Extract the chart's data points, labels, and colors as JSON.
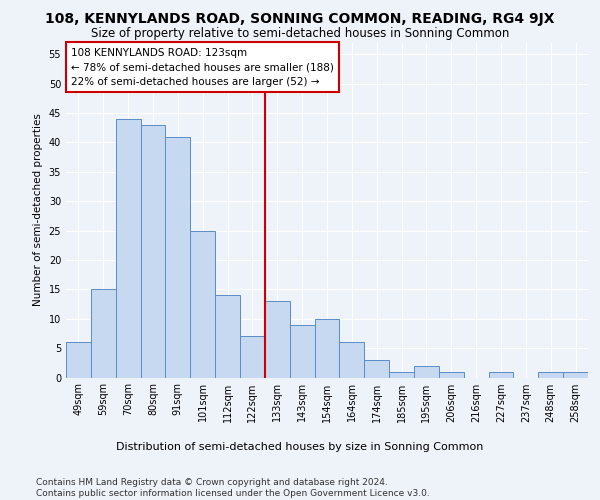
{
  "title": "108, KENNYLANDS ROAD, SONNING COMMON, READING, RG4 9JX",
  "subtitle": "Size of property relative to semi-detached houses in Sonning Common",
  "xlabel": "Distribution of semi-detached houses by size in Sonning Common",
  "ylabel": "Number of semi-detached properties",
  "categories": [
    "49sqm",
    "59sqm",
    "70sqm",
    "80sqm",
    "91sqm",
    "101sqm",
    "112sqm",
    "122sqm",
    "133sqm",
    "143sqm",
    "154sqm",
    "164sqm",
    "174sqm",
    "185sqm",
    "195sqm",
    "206sqm",
    "216sqm",
    "227sqm",
    "237sqm",
    "248sqm",
    "258sqm"
  ],
  "values": [
    6,
    15,
    44,
    43,
    41,
    25,
    14,
    7,
    13,
    9,
    10,
    6,
    3,
    1,
    2,
    1,
    0,
    1,
    0,
    1,
    1
  ],
  "bar_color": "#c6d9f0",
  "bar_edge_color": "#5b8cc8",
  "vline_x": 7.5,
  "vline_color": "#cc0000",
  "annotation_line1": "108 KENNYLANDS ROAD: 123sqm",
  "annotation_line2": "← 78% of semi-detached houses are smaller (188)",
  "annotation_line3": "22% of semi-detached houses are larger (52) →",
  "annotation_box_color": "#ffffff",
  "annotation_box_edge": "#cc0000",
  "ylim": [
    0,
    57
  ],
  "yticks": [
    0,
    5,
    10,
    15,
    20,
    25,
    30,
    35,
    40,
    45,
    50,
    55
  ],
  "footer": "Contains HM Land Registry data © Crown copyright and database right 2024.\nContains public sector information licensed under the Open Government Licence v3.0.",
  "bg_color": "#eef2f9",
  "grid_color": "#ffffff",
  "title_fontsize": 10,
  "subtitle_fontsize": 8.5,
  "axis_label_fontsize": 8,
  "tick_fontsize": 7,
  "footer_fontsize": 6.5,
  "annotation_fontsize": 7.5,
  "ylabel_fontsize": 7.5
}
